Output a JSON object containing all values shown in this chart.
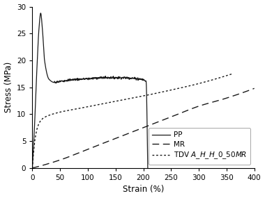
{
  "title": "",
  "xlabel": "Strain (%)",
  "ylabel": "Stress (MPa)",
  "xlim": [
    0,
    400
  ],
  "ylim": [
    0,
    30
  ],
  "xticks": [
    0,
    50,
    100,
    150,
    200,
    250,
    300,
    350,
    400
  ],
  "yticks": [
    0,
    5,
    10,
    15,
    20,
    25,
    30
  ],
  "background_color": "#ffffff",
  "pp_keypoints_x": [
    0,
    4,
    8,
    12,
    15,
    18,
    22,
    30,
    40,
    50,
    70,
    100,
    130,
    160,
    190,
    205,
    208
  ],
  "pp_keypoints_y": [
    0,
    8,
    18,
    26,
    28.8,
    26,
    20,
    16.5,
    15.9,
    16.1,
    16.4,
    16.6,
    16.8,
    16.8,
    16.6,
    16.1,
    0
  ],
  "mr_keypoints_x": [
    0,
    50,
    100,
    150,
    200,
    250,
    300,
    350,
    400
  ],
  "mr_keypoints_y": [
    0,
    1.5,
    3.5,
    5.5,
    7.5,
    9.5,
    11.5,
    13.0,
    14.8
  ],
  "tdv_keypoints_x": [
    0,
    5,
    10,
    15,
    20,
    30,
    50,
    80,
    120,
    160,
    200,
    250,
    300,
    360
  ],
  "tdv_keypoints_y": [
    0,
    5.5,
    7.8,
    8.8,
    9.3,
    9.8,
    10.4,
    11.0,
    11.8,
    12.6,
    13.4,
    14.5,
    15.7,
    17.5
  ],
  "line_color": "#1a1a1a",
  "legend_labels": [
    "PP",
    "MR",
    "TDV A_H_H_0_50MR"
  ],
  "legend_fontsize": 7.5,
  "axis_fontsize": 8.5,
  "tick_fontsize": 7.5
}
